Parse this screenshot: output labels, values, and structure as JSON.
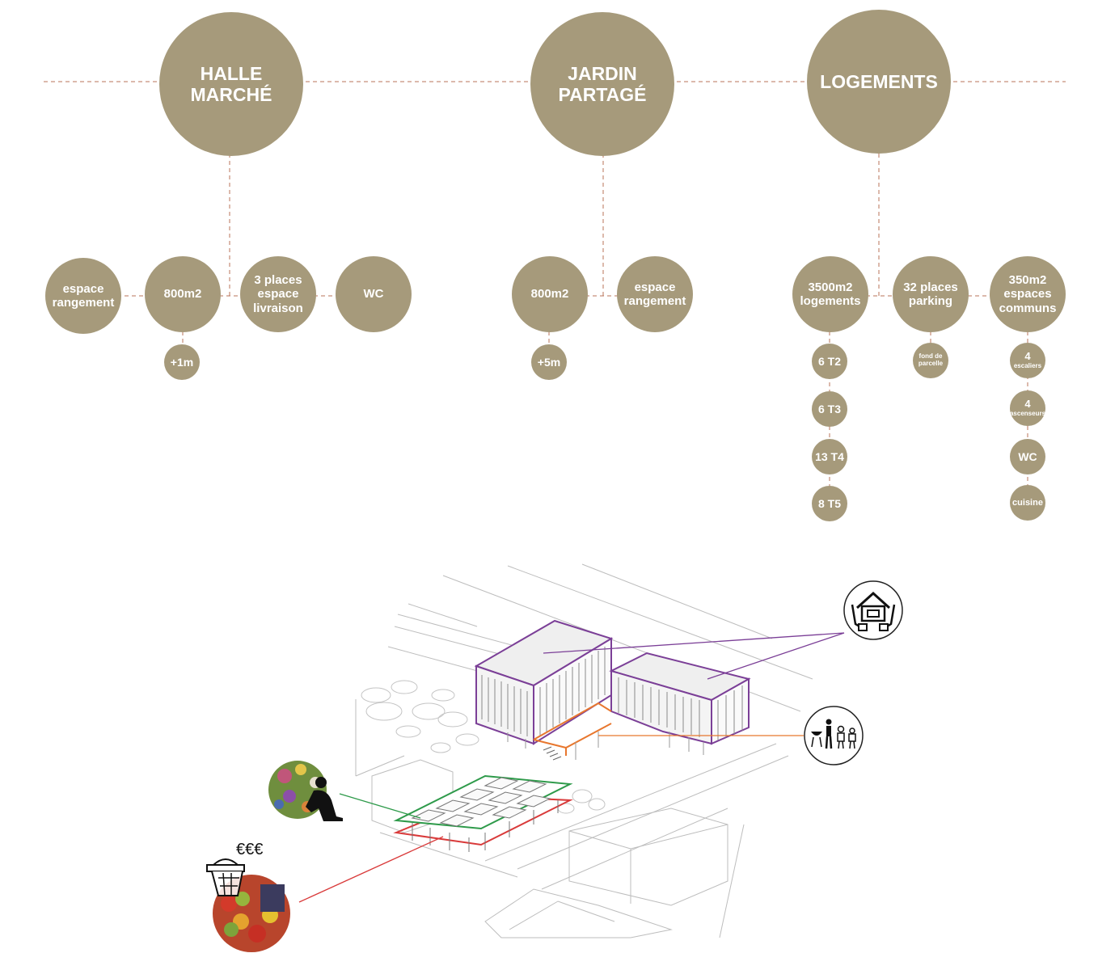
{
  "programs": [
    {
      "title": "HALLE\nMARCHÉ",
      "items": [
        {
          "label": "espace\nrangement"
        },
        {
          "label": "800m2",
          "sub": [
            "+1m"
          ]
        },
        {
          "label": "3 places\nespace\nlivraison"
        },
        {
          "label": "WC"
        }
      ]
    },
    {
      "title": "JARDIN\nPARTAGÉ",
      "items": [
        {
          "label": "800m2",
          "sub": [
            "+5m"
          ]
        },
        {
          "label": "espace\nrangement"
        }
      ]
    },
    {
      "title": "LOGEMENTS",
      "items": [
        {
          "label": "3500m2\nlogements",
          "sub": [
            "6 T2",
            "6 T3",
            "13 T4",
            "8 T5"
          ]
        },
        {
          "label": "32 places\nparking",
          "sub": [
            "fond de\nparcelle"
          ]
        },
        {
          "label": "350m2\nespaces\ncommuns",
          "sub": [
            {
              "num": "4",
              "word": "escaliers"
            },
            {
              "num": "4",
              "word": "ascenseurs"
            },
            "WC",
            "cuisine"
          ]
        }
      ]
    }
  ],
  "market_price_label": "€€€",
  "colors": {
    "bubble": "#a69a7b",
    "connector": "#b8735a",
    "housing_outline": "#7b3f97",
    "common_outline": "#e8772e",
    "garden_outline": "#2e9a4a",
    "market_outline": "#d93a3a"
  },
  "icons": [
    "housing-hands-icon",
    "barbecue-community-icon",
    "gardener-icon",
    "market-basket-icon"
  ]
}
